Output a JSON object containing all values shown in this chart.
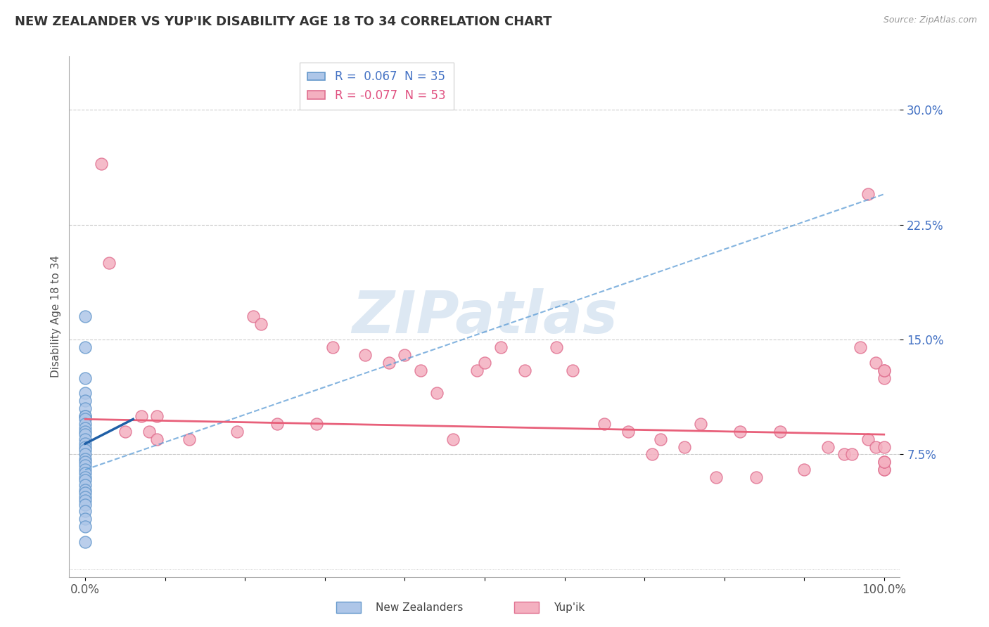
{
  "title": "NEW ZEALANDER VS YUP'IK DISABILITY AGE 18 TO 34 CORRELATION CHART",
  "source": "Source: ZipAtlas.com",
  "ylabel": "Disability Age 18 to 34",
  "ytick_values": [
    0.075,
    0.15,
    0.225,
    0.3
  ],
  "xlim": [
    -0.02,
    1.02
  ],
  "ylim": [
    -0.005,
    0.335
  ],
  "legend_line1": "R =  0.067  N = 35",
  "legend_line2": "R = -0.077  N = 53",
  "nz_color": "#aec6e8",
  "nz_edge_color": "#6699cc",
  "yupik_color": "#f4b0c0",
  "yupik_edge_color": "#e07090",
  "nz_line_color": "#5b9bd5",
  "yupik_line_color": "#e8607a",
  "legend_text_color": "#4472c4",
  "watermark": "ZIPatlas",
  "watermark_color_r": 0.78,
  "watermark_color_g": 0.85,
  "watermark_color_b": 0.92,
  "nz_line_x0": 0.0,
  "nz_line_y0": 0.065,
  "nz_line_x1": 1.0,
  "nz_line_y1": 0.245,
  "yupik_line_x0": 0.0,
  "yupik_line_y0": 0.098,
  "yupik_line_x1": 1.0,
  "yupik_line_y1": 0.088,
  "nz_points_x": [
    0.0,
    0.0,
    0.0,
    0.0,
    0.0,
    0.0,
    0.0,
    0.0,
    0.0,
    0.0,
    0.0,
    0.0,
    0.0,
    0.0,
    0.0,
    0.0,
    0.0,
    0.0,
    0.0,
    0.0,
    0.0,
    0.0,
    0.0,
    0.0,
    0.0,
    0.0,
    0.0,
    0.0,
    0.0,
    0.0,
    0.0,
    0.0,
    0.0,
    0.0,
    0.0
  ],
  "nz_points_y": [
    0.165,
    0.145,
    0.125,
    0.115,
    0.11,
    0.105,
    0.1,
    0.1,
    0.098,
    0.095,
    0.092,
    0.09,
    0.088,
    0.085,
    0.082,
    0.08,
    0.078,
    0.075,
    0.072,
    0.07,
    0.068,
    0.065,
    0.063,
    0.06,
    0.058,
    0.055,
    0.052,
    0.05,
    0.047,
    0.045,
    0.042,
    0.038,
    0.033,
    0.028,
    0.018
  ],
  "yupik_points_x": [
    0.02,
    0.03,
    0.05,
    0.07,
    0.08,
    0.09,
    0.09,
    0.13,
    0.19,
    0.21,
    0.22,
    0.24,
    0.29,
    0.31,
    0.35,
    0.38,
    0.4,
    0.42,
    0.44,
    0.46,
    0.49,
    0.5,
    0.52,
    0.55,
    0.59,
    0.61,
    0.65,
    0.68,
    0.71,
    0.72,
    0.75,
    0.77,
    0.79,
    0.82,
    0.84,
    0.87,
    0.9,
    0.93,
    0.95,
    0.96,
    0.97,
    0.98,
    0.98,
    0.99,
    0.99,
    1.0,
    1.0,
    1.0,
    1.0,
    1.0,
    1.0,
    1.0,
    1.0
  ],
  "yupik_points_y": [
    0.265,
    0.2,
    0.09,
    0.1,
    0.09,
    0.085,
    0.1,
    0.085,
    0.09,
    0.165,
    0.16,
    0.095,
    0.095,
    0.145,
    0.14,
    0.135,
    0.14,
    0.13,
    0.115,
    0.085,
    0.13,
    0.135,
    0.145,
    0.13,
    0.145,
    0.13,
    0.095,
    0.09,
    0.075,
    0.085,
    0.08,
    0.095,
    0.06,
    0.09,
    0.06,
    0.09,
    0.065,
    0.08,
    0.075,
    0.075,
    0.145,
    0.245,
    0.085,
    0.08,
    0.135,
    0.08,
    0.125,
    0.13,
    0.065,
    0.065,
    0.07,
    0.07,
    0.13
  ]
}
